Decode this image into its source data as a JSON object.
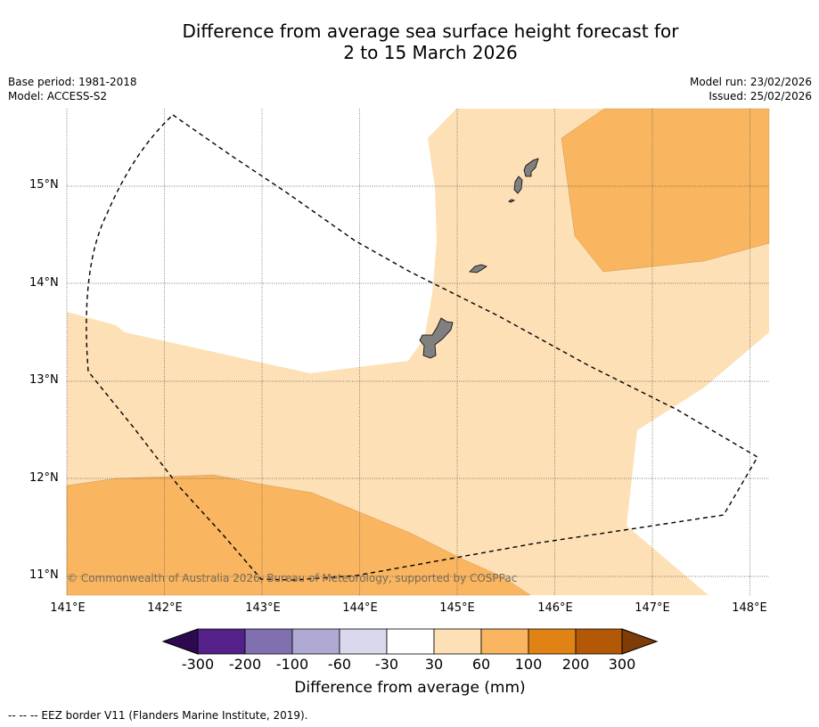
{
  "title": {
    "line1": "Difference from average sea surface height forecast for",
    "line2": "2 to 15 March 2026"
  },
  "meta_left": {
    "base_period": "Base period: 1981-2018",
    "model": "Model: ACCESS-S2"
  },
  "meta_right": {
    "model_run": "Model run: 23/02/2026",
    "issued": "Issued: 25/02/2026"
  },
  "copyright": "© Commonwealth of Australia 2026, Bureau of Meteorology, supported by COSPPac",
  "map_extent": {
    "lon_min": 141.0,
    "lon_max": 148.2,
    "lat_min": 10.8,
    "lat_max": 15.8
  },
  "axes": {
    "lon_ticks": [
      "141°E",
      "142°E",
      "143°E",
      "144°E",
      "145°E",
      "146°E",
      "147°E",
      "148°E"
    ],
    "lat_ticks": [
      "15°N",
      "14°N",
      "13°N",
      "12°N",
      "11°N"
    ]
  },
  "colorbar": {
    "title": "Difference from average (mm)",
    "tick_labels": [
      "-300",
      "-200",
      "-100",
      "-60",
      "-30",
      "30",
      "60",
      "100",
      "200",
      "300"
    ],
    "colors": [
      "#2d0a4e",
      "#54218a",
      "#8170b0",
      "#aea8d3",
      "#d9d8ec",
      "#ffffff",
      "#fde0b6",
      "#f9b560",
      "#e08214",
      "#b35806",
      "#7f3b08"
    ]
  },
  "eez_legend": "--  --  -- EEZ border V11 (Flanders Marine Institute, 2019)."
}
